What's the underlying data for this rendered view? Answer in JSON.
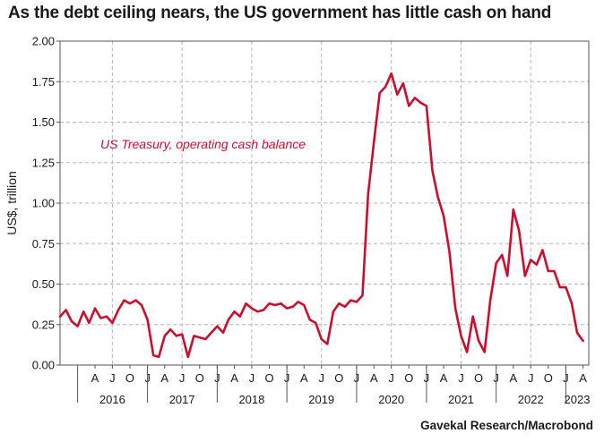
{
  "header": {
    "title": "As the debt ceiling nears, the US government has little cash on hand"
  },
  "footer": {
    "source": "Gavekal Research/Macrobond"
  },
  "chart_data": {
    "type": "line",
    "title": "As the debt ceiling nears, the US government has little cash on hand",
    "ylabel": "US$, trillion",
    "xlabel": "",
    "ylim": [
      0,
      2.0
    ],
    "xlim": [
      "2015-10-01",
      "2023-05-01"
    ],
    "y_ticks": [
      "0.00",
      "0.25",
      "0.50",
      "0.75",
      "1.00",
      "1.25",
      "1.50",
      "1.75",
      "2.00"
    ],
    "x_month_ticks": [
      "A",
      "J",
      "O",
      "J",
      "A",
      "J",
      "O",
      "J",
      "A",
      "J",
      "O",
      "J",
      "A",
      "J",
      "O",
      "J",
      "A",
      "J",
      "O",
      "J",
      "A",
      "J",
      "O",
      "J",
      "A",
      "J",
      "O",
      "J",
      "A"
    ],
    "x_year_labels": [
      "2016",
      "2017",
      "2018",
      "2019",
      "2020",
      "2021",
      "2022",
      "2023"
    ],
    "grid": true,
    "line_color": "#c8102e",
    "annotation": "US Treasury, operating cash balance",
    "series": [
      {
        "name": "US Treasury, operating cash balance",
        "x": [
          "2015-10-01",
          "2015-11-01",
          "2015-12-01",
          "2016-01-01",
          "2016-02-01",
          "2016-03-01",
          "2016-04-01",
          "2016-05-01",
          "2016-06-01",
          "2016-07-01",
          "2016-08-01",
          "2016-09-01",
          "2016-10-01",
          "2016-11-01",
          "2016-12-01",
          "2017-01-01",
          "2017-02-01",
          "2017-03-01",
          "2017-04-01",
          "2017-05-01",
          "2017-06-01",
          "2017-07-01",
          "2017-08-01",
          "2017-09-01",
          "2017-10-01",
          "2017-11-01",
          "2017-12-01",
          "2018-01-01",
          "2018-02-01",
          "2018-03-01",
          "2018-04-01",
          "2018-05-01",
          "2018-06-01",
          "2018-07-01",
          "2018-08-01",
          "2018-09-01",
          "2018-10-01",
          "2018-11-01",
          "2018-12-01",
          "2019-01-01",
          "2019-02-01",
          "2019-03-01",
          "2019-04-01",
          "2019-05-01",
          "2019-06-01",
          "2019-07-01",
          "2019-08-01",
          "2019-09-01",
          "2019-10-01",
          "2019-11-01",
          "2019-12-01",
          "2020-01-01",
          "2020-02-01",
          "2020-03-01",
          "2020-04-01",
          "2020-05-01",
          "2020-06-01",
          "2020-07-01",
          "2020-08-01",
          "2020-09-01",
          "2020-10-01",
          "2020-11-01",
          "2020-12-01",
          "2021-01-01",
          "2021-02-01",
          "2021-03-01",
          "2021-04-01",
          "2021-05-01",
          "2021-06-01",
          "2021-07-01",
          "2021-08-01",
          "2021-09-01",
          "2021-10-01",
          "2021-11-01",
          "2021-12-01",
          "2022-01-01",
          "2022-02-01",
          "2022-03-01",
          "2022-04-01",
          "2022-05-01",
          "2022-06-01",
          "2022-07-01",
          "2022-08-01",
          "2022-09-01",
          "2022-10-01",
          "2022-11-01",
          "2022-12-01",
          "2023-01-01",
          "2023-02-01",
          "2023-03-01",
          "2023-04-01"
        ],
        "values": [
          0.3,
          0.34,
          0.27,
          0.24,
          0.33,
          0.26,
          0.35,
          0.29,
          0.3,
          0.26,
          0.34,
          0.4,
          0.38,
          0.4,
          0.37,
          0.28,
          0.06,
          0.05,
          0.18,
          0.22,
          0.18,
          0.19,
          0.05,
          0.18,
          0.17,
          0.16,
          0.2,
          0.24,
          0.2,
          0.28,
          0.33,
          0.3,
          0.38,
          0.35,
          0.33,
          0.34,
          0.38,
          0.37,
          0.38,
          0.35,
          0.36,
          0.39,
          0.37,
          0.28,
          0.26,
          0.16,
          0.13,
          0.33,
          0.38,
          0.36,
          0.4,
          0.39,
          0.43,
          1.05,
          1.38,
          1.68,
          1.72,
          1.8,
          1.67,
          1.74,
          1.6,
          1.65,
          1.62,
          1.6,
          1.2,
          1.04,
          0.92,
          0.7,
          0.35,
          0.18,
          0.08,
          0.3,
          0.15,
          0.08,
          0.4,
          0.63,
          0.68,
          0.55,
          0.96,
          0.83,
          0.55,
          0.65,
          0.62,
          0.71,
          0.58,
          0.58,
          0.48,
          0.48,
          0.38,
          0.2,
          0.15
        ]
      }
    ]
  }
}
